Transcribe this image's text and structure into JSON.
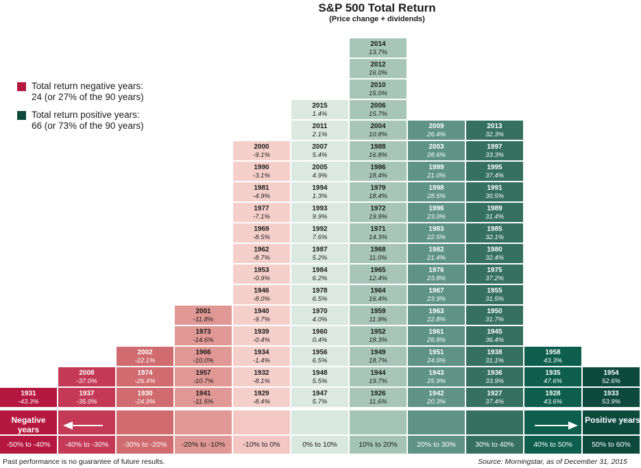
{
  "chart_data": {
    "type": "histogram",
    "title": "S&P 500 Total Return",
    "subtitle": "(Price change + dividends)",
    "legend": [
      {
        "label": "Total return negative years:",
        "detail": "24 (or 27% of the 90 years)",
        "color": "#b5173f"
      },
      {
        "label": "Total return positive years:",
        "detail": "66 (or 73% of the 90 years)",
        "color": "#0d4a3c"
      }
    ],
    "direction_labels": {
      "negative": "Negative years",
      "positive": "Positive years"
    },
    "bins": [
      {
        "range": "-50% to -40%",
        "band_color": "#b5173f",
        "cell_color": "#b5173f",
        "text_color": "#ffffff",
        "cat_color": "#b5173f",
        "cat_text": "#ffffff",
        "years": [
          {
            "year": "1931",
            "ret": "-43.3%"
          }
        ]
      },
      {
        "range": "-40% to -30%",
        "band_color": "#c43a56",
        "cell_color": "#c43a56",
        "text_color": "#ffffff",
        "cat_color": "#c43a56",
        "cat_text": "#ffffff",
        "years": [
          {
            "year": "1937",
            "ret": "-35.0%"
          },
          {
            "year": "2008",
            "ret": "-37.0%"
          }
        ]
      },
      {
        "range": "-30% to -20%",
        "band_color": "#d06b6f",
        "cell_color": "#d06b6f",
        "text_color": "#ffffff",
        "cat_color": "#d06b6f",
        "cat_text": "#ffffff",
        "years": [
          {
            "year": "1930",
            "ret": "-24.9%"
          },
          {
            "year": "1974",
            "ret": "-26.4%"
          },
          {
            "year": "2002",
            "ret": "-22.1%"
          }
        ]
      },
      {
        "range": "-20% to -10%",
        "band_color": "#e09895",
        "cell_color": "#e09895",
        "text_color": "#1a1a1a",
        "cat_color": "#e09895",
        "cat_text": "#1a1a1a",
        "years": [
          {
            "year": "1941",
            "ret": "-11.5%"
          },
          {
            "year": "1957",
            "ret": "-10.7%"
          },
          {
            "year": "1966",
            "ret": "-10.0%"
          },
          {
            "year": "1973",
            "ret": "-14.6%"
          },
          {
            "year": "2001",
            "ret": "-11.8%"
          }
        ]
      },
      {
        "range": "-10% to 0%",
        "band_color": "#f3c8c4",
        "cell_color": "#f5d0cb",
        "text_color": "#1a1a1a",
        "cat_color": "#f3c8c4",
        "cat_text": "#1a1a1a",
        "years": [
          {
            "year": "1929",
            "ret": "-8.4%"
          },
          {
            "year": "1932",
            "ret": "-8.1%"
          },
          {
            "year": "1934",
            "ret": "-1.4%"
          },
          {
            "year": "1939",
            "ret": "-0.4%"
          },
          {
            "year": "1940",
            "ret": "-9.7%"
          },
          {
            "year": "1946",
            "ret": "-8.0%"
          },
          {
            "year": "1953",
            "ret": "-0.9%"
          },
          {
            "year": "1962",
            "ret": "-8.7%"
          },
          {
            "year": "1969",
            "ret": "-8.5%"
          },
          {
            "year": "1977",
            "ret": "-7.1%"
          },
          {
            "year": "1981",
            "ret": "-4.9%"
          },
          {
            "year": "1990",
            "ret": "-3.1%"
          },
          {
            "year": "2000",
            "ret": "-9.1%"
          }
        ]
      },
      {
        "range": "0% to 10%",
        "band_color": "#d9e8e0",
        "cell_color": "#dbe9e1",
        "text_color": "#1a1a1a",
        "cat_color": "#d9e8e0",
        "cat_text": "#1a1a1a",
        "years": [
          {
            "year": "1947",
            "ret": "5.7%"
          },
          {
            "year": "1948",
            "ret": "5.5%"
          },
          {
            "year": "1956",
            "ret": "6.5%"
          },
          {
            "year": "1960",
            "ret": "0.4%"
          },
          {
            "year": "1970",
            "ret": "4.0%"
          },
          {
            "year": "1978",
            "ret": "6.5%"
          },
          {
            "year": "1984",
            "ret": "6.2%"
          },
          {
            "year": "1987",
            "ret": "5.2%"
          },
          {
            "year": "1992",
            "ret": "7.6%"
          },
          {
            "year": "1993",
            "ret": "9.9%"
          },
          {
            "year": "1994",
            "ret": "1.3%"
          },
          {
            "year": "2005",
            "ret": "4.9%"
          },
          {
            "year": "2007",
            "ret": "5.4%"
          },
          {
            "year": "2011",
            "ret": "2.1%"
          },
          {
            "year": "2015",
            "ret": "1.4%"
          }
        ]
      },
      {
        "range": "10% to 20%",
        "band_color": "#a4c4b7",
        "cell_color": "#a7c6b9",
        "text_color": "#1a1a1a",
        "cat_color": "#a4c4b7",
        "cat_text": "#1a1a1a",
        "years": [
          {
            "year": "1926",
            "ret": "11.6%"
          },
          {
            "year": "1944",
            "ret": "19.7%"
          },
          {
            "year": "1949",
            "ret": "18.7%"
          },
          {
            "year": "1952",
            "ret": "18.3%"
          },
          {
            "year": "1959",
            "ret": "11.9%"
          },
          {
            "year": "1964",
            "ret": "16.4%"
          },
          {
            "year": "1965",
            "ret": "12.4%"
          },
          {
            "year": "1968",
            "ret": "11.0%"
          },
          {
            "year": "1971",
            "ret": "14.3%"
          },
          {
            "year": "1972",
            "ret": "19.9%"
          },
          {
            "year": "1979",
            "ret": "18.4%"
          },
          {
            "year": "1986",
            "ret": "18.4%"
          },
          {
            "year": "1988",
            "ret": "16.8%"
          },
          {
            "year": "2004",
            "ret": "10.8%"
          },
          {
            "year": "2006",
            "ret": "15.7%"
          },
          {
            "year": "2010",
            "ret": "15.0%"
          },
          {
            "year": "2012",
            "ret": "16.0%"
          },
          {
            "year": "2014",
            "ret": "13.7%"
          }
        ]
      },
      {
        "range": "20% to 30%",
        "band_color": "#5f9383",
        "cell_color": "#5f9383",
        "text_color": "#ffffff",
        "cat_color": "#5f9383",
        "cat_text": "#ffffff",
        "years": [
          {
            "year": "1942",
            "ret": "20.3%"
          },
          {
            "year": "1943",
            "ret": "25.9%"
          },
          {
            "year": "1951",
            "ret": "24.0%"
          },
          {
            "year": "1961",
            "ret": "26.8%"
          },
          {
            "year": "1963",
            "ret": "22.8%"
          },
          {
            "year": "1967",
            "ret": "23.9%"
          },
          {
            "year": "1976",
            "ret": "23.8%"
          },
          {
            "year": "1982",
            "ret": "21.4%"
          },
          {
            "year": "1983",
            "ret": "22.5%"
          },
          {
            "year": "1996",
            "ret": "23.0%"
          },
          {
            "year": "1998",
            "ret": "28.5%"
          },
          {
            "year": "1999",
            "ret": "21.0%"
          },
          {
            "year": "2003",
            "ret": "28.6%"
          },
          {
            "year": "2009",
            "ret": "26.4%"
          }
        ]
      },
      {
        "range": "30% to 40%",
        "band_color": "#36705f",
        "cell_color": "#36705f",
        "text_color": "#ffffff",
        "cat_color": "#36705f",
        "cat_text": "#ffffff",
        "years": [
          {
            "year": "1927",
            "ret": "37.4%"
          },
          {
            "year": "1936",
            "ret": "33.9%"
          },
          {
            "year": "1938",
            "ret": "31.1%"
          },
          {
            "year": "1945",
            "ret": "36.4%"
          },
          {
            "year": "1950",
            "ret": "31.7%"
          },
          {
            "year": "1955",
            "ret": "31.5%"
          },
          {
            "year": "1975",
            "ret": "37.2%"
          },
          {
            "year": "1980",
            "ret": "32.4%"
          },
          {
            "year": "1985",
            "ret": "32.1%"
          },
          {
            "year": "1989",
            "ret": "31.4%"
          },
          {
            "year": "1991",
            "ret": "30.5%"
          },
          {
            "year": "1995",
            "ret": "37.4%"
          },
          {
            "year": "1997",
            "ret": "33.3%"
          },
          {
            "year": "2013",
            "ret": "32.3%"
          }
        ]
      },
      {
        "range": "40% to 50%",
        "band_color": "#0d5e4c",
        "cell_color": "#0d5e4c",
        "text_color": "#ffffff",
        "cat_color": "#0d5e4c",
        "cat_text": "#ffffff",
        "years": [
          {
            "year": "1928",
            "ret": "43.6%"
          },
          {
            "year": "1935",
            "ret": "47.6%"
          },
          {
            "year": "1958",
            "ret": "43.3%"
          }
        ]
      },
      {
        "range": "50% to 60%",
        "band_color": "#0d4a3c",
        "cell_color": "#0d4a3c",
        "text_color": "#ffffff",
        "cat_color": "#0d4a3c",
        "cat_text": "#ffffff",
        "years": [
          {
            "year": "1933",
            "ret": "53.9%"
          },
          {
            "year": "1954",
            "ret": "52.6%"
          }
        ]
      }
    ]
  },
  "footer": {
    "disclaimer": "Past performance is no guarantee of future results.",
    "source": "Source:  Morningstar, as of December 31, 2015"
  }
}
